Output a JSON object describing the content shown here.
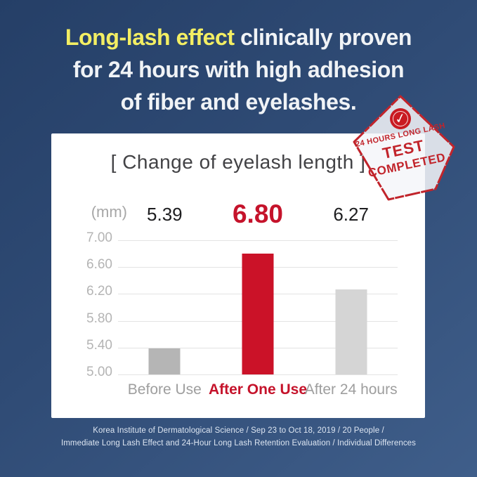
{
  "heading": {
    "highlight": "Long-lash effect",
    "line1_rest": " clinically proven",
    "line2": "for 24 hours with high adhesion",
    "line3": "of fiber and eyelashes.",
    "highlight_color": "#f3ee63",
    "text_color": "#f0f3f6"
  },
  "stamp": {
    "line1": "24 HOURS LONG LASH",
    "line2": "TEST",
    "line3": "COMPLETED",
    "check_glyph": "✓",
    "red": "#c1242b",
    "fill": "rgba(244,246,249,0.86)"
  },
  "chart_data": {
    "type": "bar",
    "title": "[ Change of eyelash length ]",
    "unit_label": "(mm)",
    "categories": [
      "Before Use",
      "After One Use",
      "After 24 hours"
    ],
    "values": [
      5.39,
      6.8,
      6.27
    ],
    "value_labels": [
      "5.39",
      "6.80",
      "6.27"
    ],
    "bar_colors": [
      "#b5b5b5",
      "#cb1228",
      "#d5d5d5"
    ],
    "value_label_colors": [
      "#1e1e20",
      "#c5132b",
      "#1e1e20"
    ],
    "category_colors": [
      "#9e9e9e",
      "#c5132b",
      "#9e9e9e"
    ],
    "highlight_index": 1,
    "ylim": [
      5.0,
      7.0
    ],
    "y_tick_labels": [
      "7.00",
      "6.60",
      "6.20",
      "5.80",
      "5.40",
      "5.00"
    ],
    "y_tick_values": [
      7.0,
      6.6,
      6.2,
      5.8,
      5.4,
      5.0
    ],
    "grid": true,
    "legend": false
  },
  "footer": {
    "line1": "Korea Institute of Dermatological Science / Sep 23 to Oct 18, 2019 / 20 People /",
    "line2": "Immediate Long Lash Effect and 24-Hour Long Lash Retention Evaluation / Individual Differences"
  }
}
